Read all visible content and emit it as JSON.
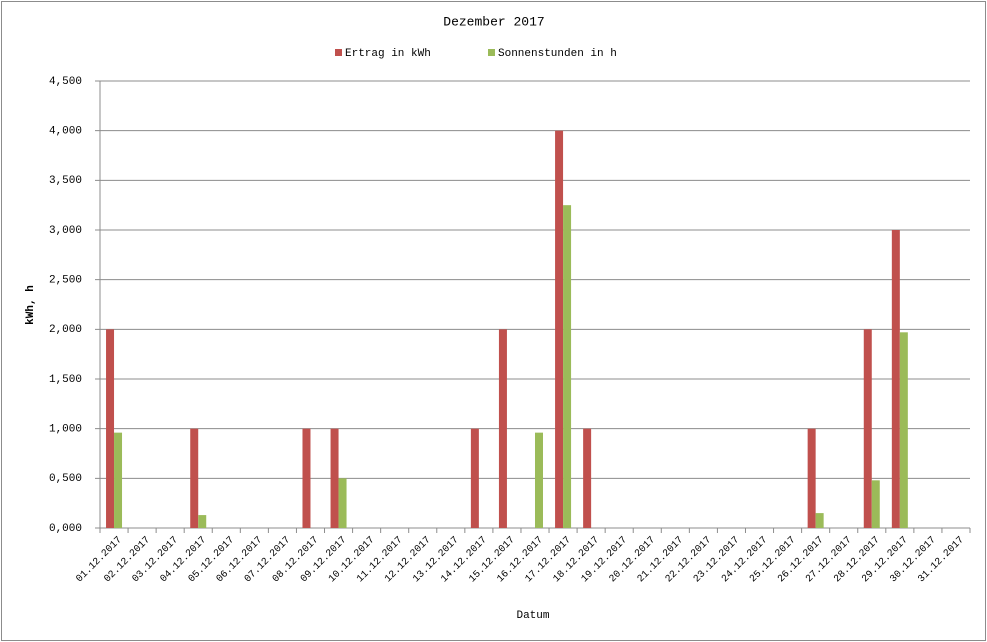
{
  "chart_data": {
    "type": "bar",
    "title": "Dezember 2017",
    "x_label": "Datum",
    "y_label": "kWh, h",
    "categories": [
      "01.12.2017",
      "02.12.2017",
      "03.12.2017",
      "04.12.2017",
      "05.12.2017",
      "06.12.2017",
      "07.12.2017",
      "08.12.2017",
      "09.12.2017",
      "10.12.2017",
      "11.12.2017",
      "12.12.2017",
      "13.12.2017",
      "14.12.2017",
      "15.12.2017",
      "16.12.2017",
      "17.12.2017",
      "18.12.2017",
      "19.12.2017",
      "20.12.2017",
      "21.12.2017",
      "22.12.2017",
      "23.12.2017",
      "24.12.2017",
      "25.12.2017",
      "26.12.2017",
      "27.12.2017",
      "28.12.2017",
      "29.12.2017",
      "30.12.2017",
      "31.12.2017"
    ],
    "series": [
      {
        "name": "Ertrag in kWh",
        "color": "#c0504d",
        "values": [
          2,
          0,
          0,
          1,
          0,
          0,
          0,
          1,
          1,
          0,
          0,
          0,
          0,
          1,
          2,
          0,
          4,
          1,
          0,
          0,
          0,
          0,
          0,
          0,
          0,
          1,
          0,
          2,
          3,
          0,
          0
        ]
      },
      {
        "name": "Sonnenstunden in h",
        "color": "#9bbb59",
        "values": [
          0.96,
          0,
          0,
          0.13,
          0,
          0,
          0,
          0,
          0.5,
          0,
          0,
          0,
          0,
          0,
          0,
          0.96,
          3.25,
          0,
          0,
          0,
          0,
          0,
          0,
          0,
          0,
          0.15,
          0,
          0.48,
          1.97,
          0,
          0
        ]
      }
    ],
    "ylim": [
      0,
      4.5
    ],
    "yticks": [
      {
        "value": 0,
        "label": "0,000"
      },
      {
        "value": 0.5,
        "label": "0,500"
      },
      {
        "value": 1,
        "label": "1,000"
      },
      {
        "value": 1.5,
        "label": "1,500"
      },
      {
        "value": 2,
        "label": "2,000"
      },
      {
        "value": 2.5,
        "label": "2,500"
      },
      {
        "value": 3,
        "label": "3,000"
      },
      {
        "value": 3.5,
        "label": "3,500"
      },
      {
        "value": 4,
        "label": "4,000"
      },
      {
        "value": 4.5,
        "label": "4,500"
      }
    ],
    "grid": true,
    "legend": "top"
  }
}
